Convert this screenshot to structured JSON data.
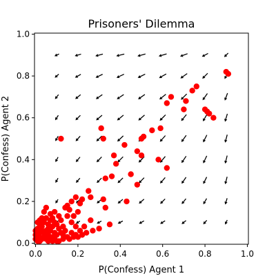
{
  "chart_data": {
    "type": "scatter",
    "title": "Prisoners' Dilemma",
    "xlabel": "P(Confess) Agent 1",
    "ylabel": "P(Confess) Agent 2",
    "xlim": [
      0.0,
      1.0
    ],
    "ylim": [
      0.0,
      1.0
    ],
    "x_ticks": [
      "0.0",
      "0.2",
      "0.4",
      "0.6",
      "0.8",
      "1.0"
    ],
    "y_ticks": [
      "0.0",
      "0.2",
      "0.4",
      "0.6",
      "0.8",
      "1.0"
    ],
    "grid": false,
    "colors": {
      "points": "#ff0000",
      "arrows": "#000000"
    },
    "quiver": {
      "x": [
        0.1,
        0.2,
        0.3,
        0.4,
        0.5,
        0.6,
        0.7,
        0.8,
        0.9
      ],
      "y": [
        0.1,
        0.2,
        0.3,
        0.4,
        0.5,
        0.6,
        0.7,
        0.8,
        0.9
      ]
    },
    "points": [
      [
        0.9,
        0.82
      ],
      [
        0.91,
        0.81
      ],
      [
        0.76,
        0.75
      ],
      [
        0.74,
        0.73
      ],
      [
        0.71,
        0.68
      ],
      [
        0.64,
        0.7
      ],
      [
        0.62,
        0.67
      ],
      [
        0.7,
        0.64
      ],
      [
        0.8,
        0.64
      ],
      [
        0.81,
        0.63
      ],
      [
        0.82,
        0.62
      ],
      [
        0.84,
        0.6
      ],
      [
        0.59,
        0.55
      ],
      [
        0.55,
        0.54
      ],
      [
        0.5,
        0.5
      ],
      [
        0.51,
        0.51
      ],
      [
        0.48,
        0.44
      ],
      [
        0.5,
        0.42
      ],
      [
        0.58,
        0.4
      ],
      [
        0.62,
        0.36
      ],
      [
        0.42,
        0.47
      ],
      [
        0.37,
        0.42
      ],
      [
        0.38,
        0.38
      ],
      [
        0.33,
        0.31
      ],
      [
        0.36,
        0.32
      ],
      [
        0.45,
        0.33
      ],
      [
        0.48,
        0.28
      ],
      [
        0.43,
        0.2
      ],
      [
        0.31,
        0.55
      ],
      [
        0.32,
        0.5
      ],
      [
        0.12,
        0.5
      ],
      [
        0.32,
        0.21
      ],
      [
        0.33,
        0.17
      ],
      [
        0.26,
        0.22
      ],
      [
        0.25,
        0.25
      ],
      [
        0.22,
        0.21
      ],
      [
        0.21,
        0.19
      ],
      [
        0.19,
        0.22
      ],
      [
        0.17,
        0.2
      ],
      [
        0.15,
        0.18
      ],
      [
        0.16,
        0.16
      ],
      [
        0.14,
        0.17
      ],
      [
        0.18,
        0.13
      ],
      [
        0.2,
        0.15
      ],
      [
        0.26,
        0.11
      ],
      [
        0.35,
        0.09
      ],
      [
        0.3,
        0.07
      ],
      [
        0.27,
        0.06
      ],
      [
        0.24,
        0.05
      ],
      [
        0.22,
        0.04
      ],
      [
        0.2,
        0.03
      ],
      [
        0.18,
        0.03
      ],
      [
        0.16,
        0.02
      ],
      [
        0.13,
        0.02
      ],
      [
        0.11,
        0.01
      ],
      [
        0.11,
        0.13
      ],
      [
        0.12,
        0.11
      ],
      [
        0.09,
        0.15
      ],
      [
        0.07,
        0.14
      ],
      [
        0.08,
        0.12
      ],
      [
        0.1,
        0.09
      ],
      [
        0.13,
        0.08
      ],
      [
        0.14,
        0.06
      ],
      [
        0.12,
        0.05
      ],
      [
        0.09,
        0.1
      ],
      [
        0.07,
        0.11
      ],
      [
        0.06,
        0.09
      ],
      [
        0.08,
        0.08
      ],
      [
        0.05,
        0.12
      ],
      [
        0.06,
        0.07
      ],
      [
        0.07,
        0.06
      ],
      [
        0.04,
        0.1
      ],
      [
        0.03,
        0.12
      ],
      [
        0.03,
        0.08
      ],
      [
        0.05,
        0.06
      ],
      [
        0.09,
        0.05
      ],
      [
        0.1,
        0.04
      ],
      [
        0.08,
        0.03
      ],
      [
        0.06,
        0.04
      ],
      [
        0.04,
        0.05
      ],
      [
        0.03,
        0.06
      ],
      [
        0.02,
        0.05
      ],
      [
        0.02,
        0.09
      ],
      [
        0.01,
        0.07
      ],
      [
        0.01,
        0.04
      ],
      [
        0.02,
        0.03
      ],
      [
        0.03,
        0.02
      ],
      [
        0.04,
        0.03
      ],
      [
        0.05,
        0.02
      ],
      [
        0.06,
        0.01
      ],
      [
        0.07,
        0.02
      ],
      [
        0.08,
        0.01
      ],
      [
        0.09,
        0.02
      ],
      [
        0.1,
        0.01
      ],
      [
        0.01,
        0.02
      ],
      [
        0.02,
        0.01
      ],
      [
        0.01,
        0.01
      ],
      [
        0.0,
        0.02
      ],
      [
        0.0,
        0.04
      ],
      [
        0.0,
        0.06
      ],
      [
        0.01,
        0.1
      ],
      [
        0.02,
        0.11
      ],
      [
        0.15,
        0.13
      ],
      [
        0.17,
        0.1
      ],
      [
        0.19,
        0.08
      ],
      [
        0.21,
        0.06
      ],
      [
        0.23,
        0.08
      ],
      [
        0.04,
        0.15
      ],
      [
        0.05,
        0.17
      ],
      [
        0.11,
        0.07
      ],
      [
        0.13,
        0.04
      ],
      [
        0.15,
        0.03
      ],
      [
        0.17,
        0.05
      ],
      [
        0.19,
        0.04
      ]
    ]
  }
}
